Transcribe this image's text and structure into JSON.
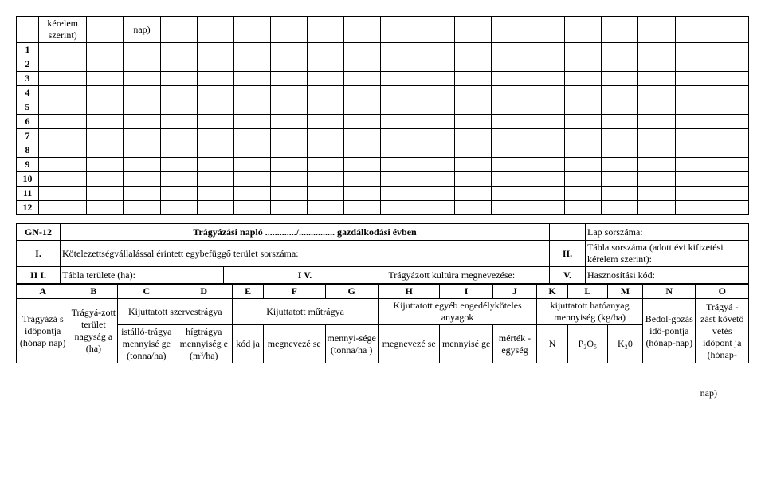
{
  "topTable": {
    "headerCol2": "kérelem szerint)",
    "headerCol4": "nap)",
    "rowLabels": [
      "1",
      "2",
      "3",
      "4",
      "5",
      "6",
      "7",
      "8",
      "9",
      "10",
      "11",
      "12"
    ],
    "colCount": 20
  },
  "middle": {
    "code": "GN-12",
    "title": "Trágyázási napló",
    "dots": "............./...............",
    "yearLabel": "gazdálkodási évben",
    "pageLabel": "Lap sorszáma:",
    "r2_c1": "I.",
    "r2_label": "Kötelezettségvállalással érintett egybefüggő terület sorszáma:",
    "r2_c3": "II.",
    "r2_c4": "Tábla sorszáma (adott évi kifizetési kérelem szerint):",
    "r3_c1": "II I.",
    "r3_c2": "Tábla területe (ha):",
    "r3_c3": "I V.",
    "r3_c4": "Trágyázott kultúra megnevezése:",
    "r3_c5": "V.",
    "r3_c6": "Hasznosítási kód:"
  },
  "bottom": {
    "letters": [
      "A",
      "B",
      "C",
      "D",
      "E",
      "F",
      "G",
      "H",
      "I",
      "J",
      "K",
      "L",
      "M",
      "N",
      "O"
    ],
    "group1": "Kijuttatott szervestrágya",
    "group2": "Kijuttatott műtrágya",
    "group3": "Kijuttatott egyéb engedélyköteles anyagok",
    "group4": "kijuttatott hatóanyag mennyiség (kg/ha)",
    "cA": "Trágyázá s időpontja (hónap nap)",
    "cB": "Trágyá-zott terület nagyság a (ha)",
    "cC": "istálló-trágya mennyisé ge (tonna/ha)",
    "cD": "hígtrágya mennyiség e (m³/ha)",
    "cE": "kód ja",
    "cF": "megnevezé se",
    "cG": "mennyi-sége (tonna/ha )",
    "cH": "megnevezé se",
    "cI": "mennyisé ge",
    "cJ": "mérték - egység",
    "cK": "N",
    "cL": "P₂O₅",
    "cM": "K₂0",
    "cN": "Bedol-gozás idő-pontja (hónap-nap)",
    "cO": "Trágyá - zást követő vetés időpont ja (hónap-"
  },
  "footnote": "nap)"
}
